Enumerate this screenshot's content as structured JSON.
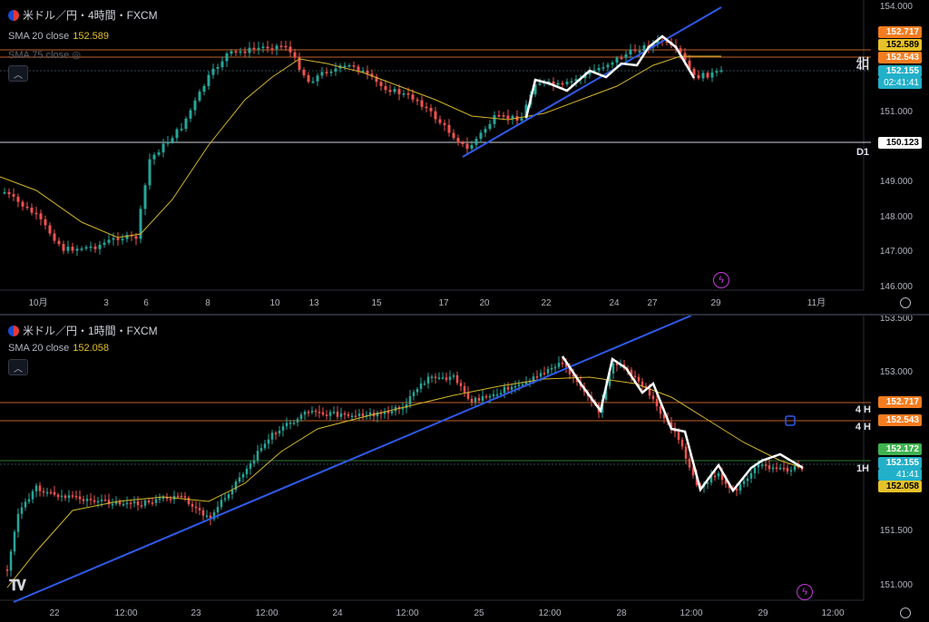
{
  "top": {
    "symbol": "米ドル／円・4時間・FXCM",
    "sma20_label": "SMA 20 close",
    "sma20_value": "152.589",
    "sma75_label": "SMA 75 close",
    "collapse_icon": "chevron-up-icon",
    "y_ticks": [
      "154.000",
      "152.000",
      "151.000",
      "150.000",
      "149.000",
      "148.000",
      "147.000",
      "146.000"
    ],
    "x_ticks": [
      "10月",
      "3",
      "6",
      "8",
      "10",
      "13",
      "15",
      "17",
      "20",
      "22",
      "24",
      "27",
      "29",
      "11月"
    ],
    "price_labels": [
      {
        "text": "152.717",
        "color": "#f57c1f"
      },
      {
        "text": "152.589",
        "color": "#e6c229"
      },
      {
        "text": "152.543",
        "color": "#f57c1f"
      },
      {
        "text": "152.155",
        "color": "#22b0c9"
      },
      {
        "text": "02:41:41",
        "color": "#22b0c9"
      },
      {
        "text": "150.123",
        "color": "#ffffff"
      }
    ],
    "tags": [
      "4H",
      "4H",
      "D1"
    ]
  },
  "bottom": {
    "symbol": "米ドル／円・1時間・FXCM",
    "sma20_label": "SMA 20 close",
    "sma20_value": "152.058",
    "y_ticks": [
      "153.500",
      "153.000",
      "151.500",
      "151.000"
    ],
    "x_ticks": [
      "22",
      "12:00",
      "23",
      "12:00",
      "24",
      "12:00",
      "25",
      "12:00",
      "28",
      "12:00",
      "29",
      "12:00"
    ],
    "price_labels": [
      {
        "text": "152.717",
        "color": "#f57c1f"
      },
      {
        "text": "152.543",
        "color": "#f57c1f"
      },
      {
        "text": "152.172",
        "color": "#3fb34f"
      },
      {
        "text": "152.155",
        "color": "#22b0c9"
      },
      {
        "text": "41:41",
        "color": "#22b0c9"
      },
      {
        "text": "152.058",
        "color": "#e6c229"
      }
    ],
    "tags": [
      "4 H",
      "4 H",
      "1H"
    ],
    "logo": "TradingView"
  },
  "colors": {
    "up": "#26a69a",
    "down": "#ef5350",
    "trend": "#2f5bea",
    "sma": "#d4b62b",
    "hline": "#c0612a",
    "wave": "#ffffff"
  }
}
